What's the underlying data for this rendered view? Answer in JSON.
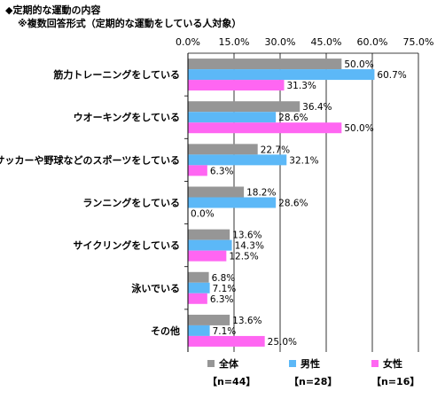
{
  "chart_data": {
    "type": "bar",
    "orientation": "horizontal",
    "title": "◆定期的な運動の内容",
    "subtitle": "※複数回答形式（定期的な運動をしている人対象）",
    "categories": [
      "筋力トレーニングをしている",
      "ウオーキングをしている",
      "サッカーや野球などのスポーツをしている",
      "ランニングをしている",
      "サイクリングをしている",
      "泳いでいる",
      "その他"
    ],
    "series": [
      {
        "name": "全体",
        "n_label": "【n=44】",
        "color": "#969696",
        "values": [
          50.0,
          36.4,
          22.7,
          18.2,
          13.6,
          6.8,
          13.6
        ],
        "labels": [
          "50.0%",
          "36.4%",
          "22.7%",
          "18.2%",
          "13.6%",
          "6.8%",
          "13.6%"
        ]
      },
      {
        "name": "男性",
        "n_label": "【n=28】",
        "color": "#5CB8F7",
        "values": [
          60.7,
          28.6,
          32.1,
          28.6,
          14.3,
          7.1,
          7.1
        ],
        "labels": [
          "60.7%",
          "28.6%",
          "32.1%",
          "28.6%",
          "14.3%",
          "7.1%",
          "7.1%"
        ]
      },
      {
        "name": "女性",
        "n_label": "【n=16】",
        "color": "#FF66F2",
        "values": [
          31.3,
          50.0,
          6.3,
          0.0,
          12.5,
          6.3,
          25.0
        ],
        "labels": [
          "31.3%",
          "50.0%",
          "6.3%",
          "0.0%",
          "12.5%",
          "6.3%",
          "25.0%"
        ]
      }
    ],
    "xlim": [
      0,
      75
    ],
    "xticks": [
      0,
      15,
      30,
      45,
      60,
      75
    ],
    "xtick_labels": [
      "0.0%",
      "15.0%",
      "30.0%",
      "45.0%",
      "60.0%",
      "75.0%"
    ],
    "axis_position": "top",
    "grid": true,
    "legend_position": "bottom"
  }
}
